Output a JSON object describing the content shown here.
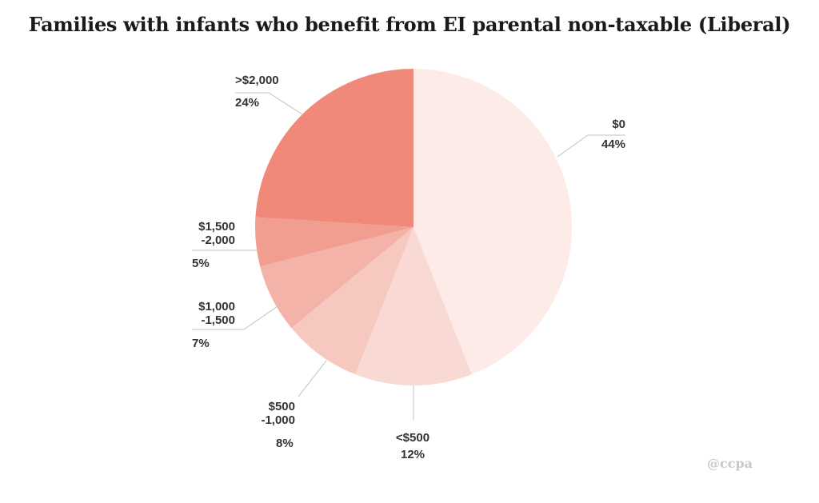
{
  "chart_data": {
    "type": "pie",
    "title": "Families with infants who benefit from EI parental non-taxable (Liberal)",
    "slices": [
      {
        "label_lines": [
          "$0"
        ],
        "value": 44,
        "value_label": "44%",
        "color": "#fdebe7"
      },
      {
        "label_lines": [
          "<$500"
        ],
        "value": 12,
        "value_label": "12%",
        "color": "#f9d9d3"
      },
      {
        "label_lines": [
          "$500",
          "-1,000"
        ],
        "value": 8,
        "value_label": "8%",
        "color": "#f7c8bf"
      },
      {
        "label_lines": [
          "$1,000",
          "-1,500"
        ],
        "value": 7,
        "value_label": "7%",
        "color": "#f3b3a8"
      },
      {
        "label_lines": [
          "$1,500",
          "-2,000"
        ],
        "value": 5,
        "value_label": "5%",
        "color": "#f19e90"
      },
      {
        "label_lines": [
          ">$2,000"
        ],
        "value": 24,
        "value_label": "24%",
        "color": "#f0897a"
      }
    ]
  },
  "watermark": "@ccpa"
}
